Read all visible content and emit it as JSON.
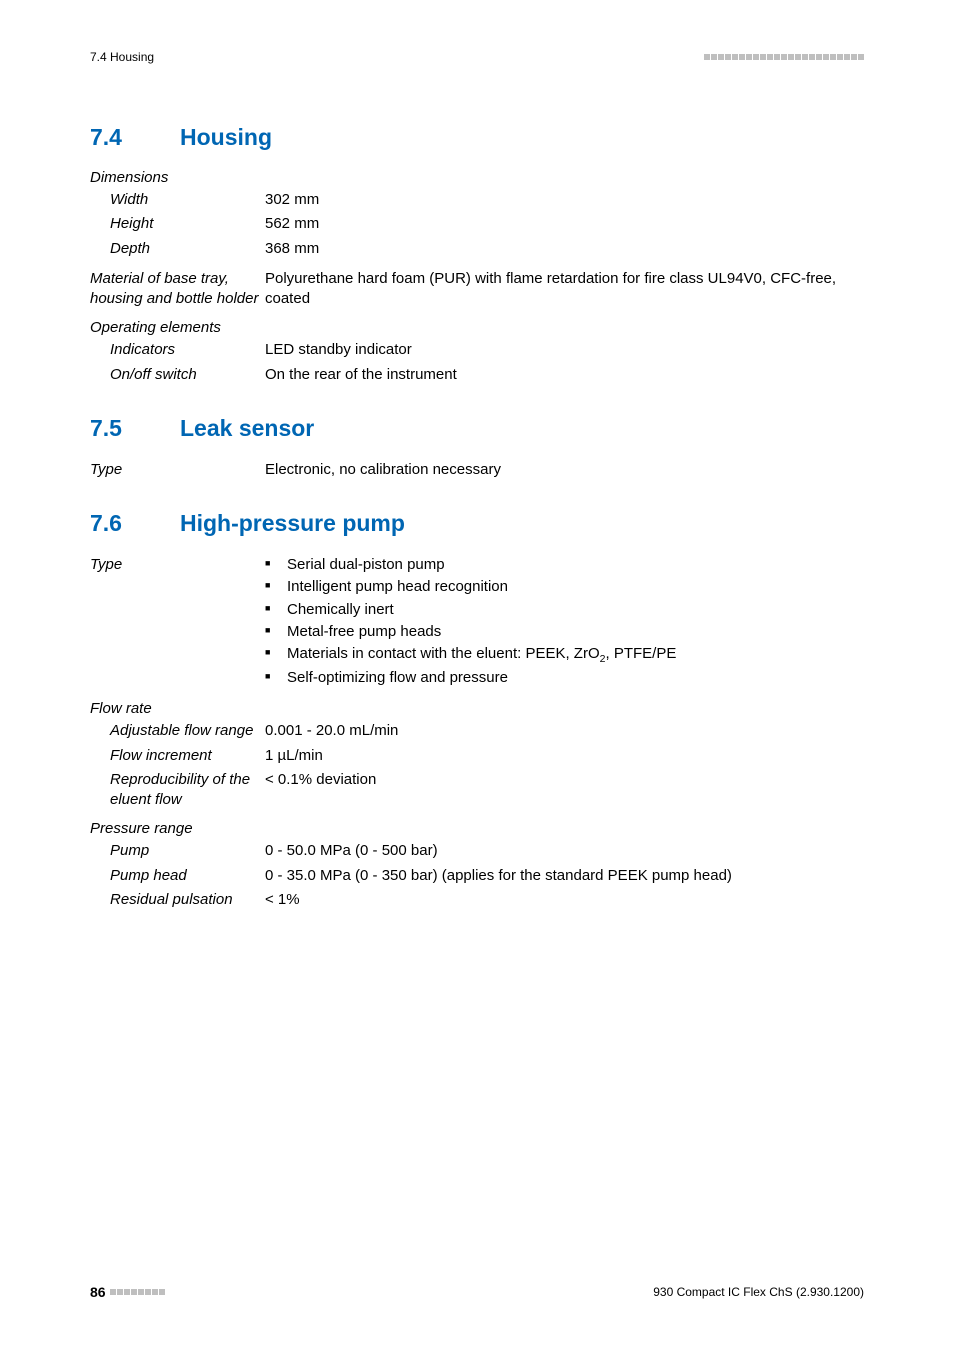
{
  "header": {
    "left": "7.4 Housing",
    "dot_count": 23,
    "dot_color": "#bfbfbf"
  },
  "sections": {
    "housing": {
      "num": "7.4",
      "title": "Housing",
      "dimensions_label": "Dimensions",
      "width_label": "Width",
      "width_val": "302 mm",
      "height_label": "Height",
      "height_val": "562 mm",
      "depth_label": "Depth",
      "depth_val": "368 mm",
      "material_label": "Material of base tray, housing and bottle holder",
      "material_val": "Polyurethane hard foam (PUR) with flame retardation for fire class UL94V0, CFC-free, coated",
      "operating_label": "Operating elements",
      "indicators_label": "Indicators",
      "indicators_val": "LED standby indicator",
      "onoff_label": "On/off switch",
      "onoff_val": "On the rear of the instrument"
    },
    "leak": {
      "num": "7.5",
      "title": "Leak sensor",
      "type_label": "Type",
      "type_val": "Electronic, no calibration necessary"
    },
    "pump": {
      "num": "7.6",
      "title": "High-pressure pump",
      "type_label": "Type",
      "bullets": {
        "b1": "Serial dual-piston pump",
        "b2": "Intelligent pump head recognition",
        "b3": "Chemically inert",
        "b4": "Metal-free pump heads",
        "b6": "Self-optimizing flow and pressure"
      },
      "flowrate_label": "Flow rate",
      "adj_label": "Adjustable flow range",
      "adj_val": "0.001 - 20.0 mL/min",
      "inc_label": "Flow increment",
      "inc_val": "1 µL/min",
      "repro_label": "Reproducibility of the eluent flow",
      "repro_val": "< 0.1% deviation",
      "press_label": "Pressure range",
      "pump_label": "Pump",
      "pump_val": "0 - 50.0 MPa (0 - 500 bar)",
      "head_label": "Pump head",
      "head_val": "0 - 35.0 MPa (0 - 350 bar) (applies for the standard PEEK pump head)",
      "resid_label": "Residual pulsation",
      "resid_val": "< 1%"
    }
  },
  "footer": {
    "page": "86",
    "dot_count": 8,
    "dot_color": "#bfbfbf",
    "right": "930 Compact IC Flex ChS (2.930.1200)"
  }
}
